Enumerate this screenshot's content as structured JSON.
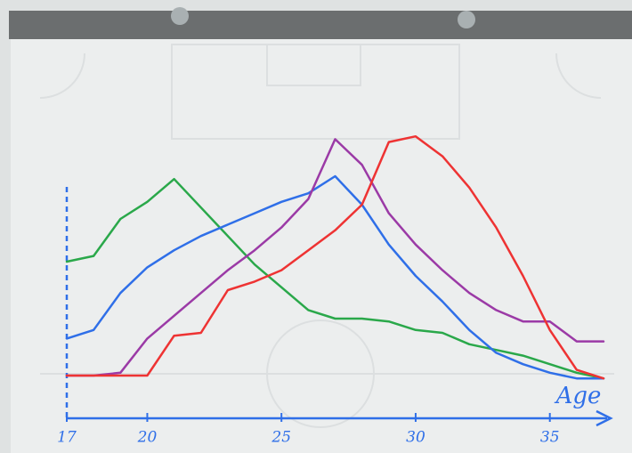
{
  "chart_data": {
    "type": "line",
    "xlabel": "Age",
    "x": [
      17,
      18,
      19,
      20,
      21,
      22,
      23,
      24,
      25,
      26,
      27,
      28,
      29,
      30,
      31,
      32,
      33,
      34,
      35,
      36,
      37
    ],
    "xlim": [
      17,
      37
    ],
    "xticks": [
      17,
      20,
      25,
      30,
      35
    ],
    "ylim": [
      0,
      100
    ],
    "series": [
      {
        "color": "#2aa84a",
        "values": [
          55,
          57,
          70,
          76,
          84,
          74,
          64,
          54,
          46,
          38,
          35,
          35,
          34,
          31,
          30,
          26,
          24,
          22,
          19,
          16,
          14
        ]
      },
      {
        "color": "#2f6fe8",
        "values": [
          28,
          31,
          44,
          53,
          59,
          64,
          68,
          72,
          76,
          79,
          85,
          75,
          61,
          50,
          41,
          31,
          23,
          19,
          16,
          14,
          14
        ]
      },
      {
        "color": "#9b3aa6",
        "values": [
          15,
          15,
          16,
          28,
          36,
          44,
          52,
          59,
          67,
          77,
          98,
          89,
          72,
          61,
          52,
          44,
          38,
          34,
          34,
          27,
          27
        ]
      },
      {
        "color": "#ee3333",
        "values": [
          15,
          15,
          15,
          15,
          29,
          30,
          45,
          48,
          52,
          59,
          66,
          75,
          97,
          99,
          92,
          81,
          67,
          50,
          31,
          17,
          14
        ]
      }
    ]
  }
}
